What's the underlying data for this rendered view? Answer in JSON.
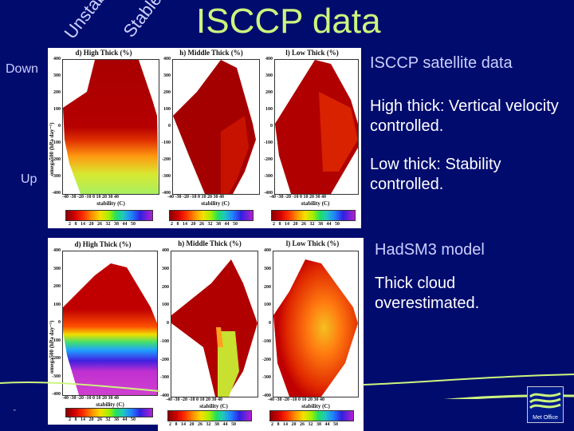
{
  "slide": {
    "title": "ISCCP data",
    "axis_hints": {
      "unstable": "Unstable",
      "stable": "Stable",
      "down": "Down",
      "up": "Up"
    },
    "page_number": "”",
    "logo_text": "Met Office",
    "colors": {
      "background": "#000b6e",
      "title": "#ccf57e",
      "heading": "#c9d0ff",
      "body": "#ffffff",
      "swoosh": "#ccf57e"
    }
  },
  "notes": {
    "isccp_heading": "ISCCP satellite data",
    "isccp_point1": "High thick: Vertical velocity controlled.",
    "isccp_point2": "Low thick: Stability controlled.",
    "model_heading": "HadSM3 model",
    "model_point1": "Thick cloud overestimated."
  },
  "panel_labels": {
    "high": "d) High Thick (%)",
    "middle": "h) Middle Thick (%)",
    "low": "l) Low Thick (%)",
    "xlabel": "stability (C)",
    "ylabel": "omega500 (hPa day⁻¹)",
    "yticks": [
      "400",
      "300",
      "200",
      "100",
      "0",
      "-100",
      "-200",
      "-300",
      "-400"
    ],
    "xticks": "-40 -30 -20 -10 0 10 20 30 40",
    "cbar_ticks": "2 8 14 20 26 32 38 44 50"
  },
  "chart_data": [
    {
      "type": "heatmap",
      "source": "ISCCP satellite",
      "title": "d) High Thick (%)",
      "xlabel": "stability (C)",
      "ylabel": "omega500 (hPa day-1)",
      "xlim": [
        -40,
        40
      ],
      "ylim": [
        -400,
        400
      ],
      "colorbar_range": [
        2,
        50
      ],
      "colorbar_ticks": [
        2,
        8,
        14,
        20,
        26,
        32,
        38,
        44,
        50
      ],
      "description": "Low values (2-8%) for omega > 0; increasing to 20-30% for strong ascent (omega < -200)"
    },
    {
      "type": "heatmap",
      "source": "ISCCP satellite",
      "title": "h) Middle Thick (%)",
      "xlabel": "stability (C)",
      "ylabel": "omega500 (hPa day-1)",
      "xlim": [
        -40,
        40
      ],
      "ylim": [
        -400,
        400
      ],
      "colorbar_range": [
        2,
        50
      ],
      "colorbar_ticks": [
        2,
        8,
        14,
        20,
        26,
        32,
        38,
        44,
        50
      ],
      "description": "Mostly 2-8% across domain, diamond-shaped coverage"
    },
    {
      "type": "heatmap",
      "source": "ISCCP satellite",
      "title": "l) Low Thick (%)",
      "xlabel": "stability (C)",
      "ylabel": "omega500 (hPa day-1)",
      "xlim": [
        -40,
        40
      ],
      "ylim": [
        -400,
        400
      ],
      "colorbar_range": [
        2,
        50
      ],
      "colorbar_ticks": [
        2,
        8,
        14,
        20,
        26,
        32,
        38,
        44,
        50
      ],
      "description": "2-8% at low stability, increasing to ~10-14% at high stability"
    },
    {
      "type": "heatmap",
      "source": "HadSM3 model",
      "title": "d) High Thick (%)",
      "xlabel": "stability (C)",
      "ylabel": "omega500 (hPa day-1)",
      "xlim": [
        -40,
        40
      ],
      "ylim": [
        -400,
        400
      ],
      "colorbar_range": [
        2,
        50
      ],
      "colorbar_ticks": [
        2,
        8,
        14,
        20,
        26,
        32,
        38,
        44,
        50
      ],
      "description": "Sharp increase below omega -50 to 40-50% at omega < -200"
    },
    {
      "type": "heatmap",
      "source": "HadSM3 model",
      "title": "h) Middle Thick (%)",
      "xlabel": "stability (C)",
      "ylabel": "omega500 (hPa day-1)",
      "xlim": [
        -40,
        40
      ],
      "ylim": [
        -400,
        400
      ],
      "colorbar_range": [
        2,
        50
      ],
      "colorbar_ticks": [
        2,
        8,
        14,
        20,
        26,
        32,
        38,
        44,
        50
      ],
      "description": "2-8% mostly, 14-20% for ascent near stability 0-20"
    },
    {
      "type": "heatmap",
      "source": "HadSM3 model",
      "title": "l) Low Thick (%)",
      "xlabel": "stability (C)",
      "ylabel": "omega500 (hPa day-1)",
      "xlim": [
        -40,
        40
      ],
      "ylim": [
        -400,
        400
      ],
      "colorbar_range": [
        2,
        50
      ],
      "colorbar_ticks": [
        2,
        8,
        14,
        20,
        26,
        32,
        38,
        44,
        50
      ],
      "description": "8-20% broadly, maximum ~20% near omega -50, stability 5"
    }
  ]
}
